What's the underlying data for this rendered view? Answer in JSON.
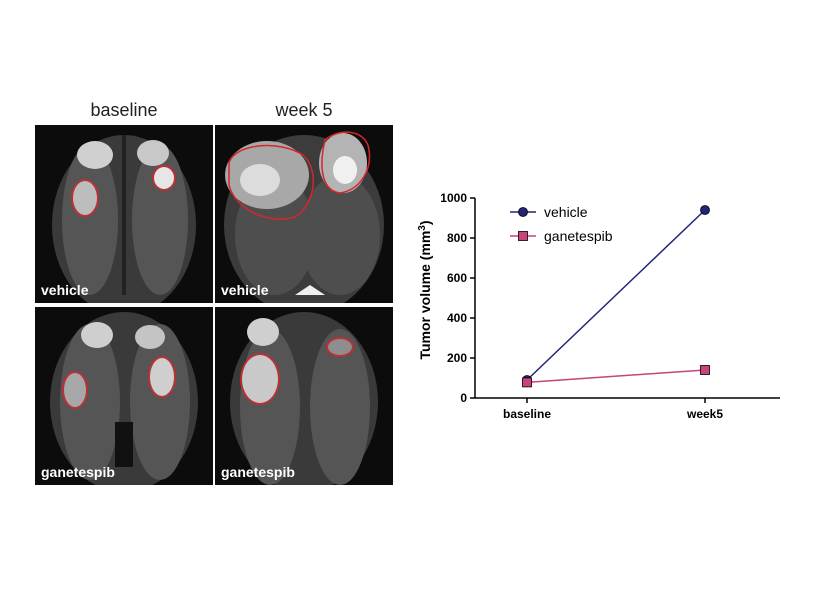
{
  "figure": {
    "columns": [
      "baseline",
      "week 5"
    ],
    "panels": [
      {
        "label": "vehicle"
      },
      {
        "label": "vehicle"
      },
      {
        "label": "ganetespib"
      },
      {
        "label": "ganetespib"
      }
    ],
    "colors": {
      "outline": "#d8262b",
      "panel_bg": "#0c0c0c"
    }
  },
  "chart_data": {
    "type": "line",
    "categories": [
      "baseline",
      "week5"
    ],
    "ylabel_main": "Tumor volume (mm",
    "ylabel_sup": "3",
    "ylabel_close": ")",
    "ylim": [
      0,
      1000
    ],
    "yticks": [
      "0",
      "200",
      "400",
      "600",
      "800",
      "1000"
    ],
    "series": [
      {
        "name": "vehicle",
        "values": [
          90,
          940
        ],
        "color": "#23237a",
        "marker": "circle"
      },
      {
        "name": "ganetespib",
        "values": [
          78,
          140
        ],
        "color": "#c8447a",
        "marker": "square"
      }
    ],
    "legend_position": "top-left"
  }
}
